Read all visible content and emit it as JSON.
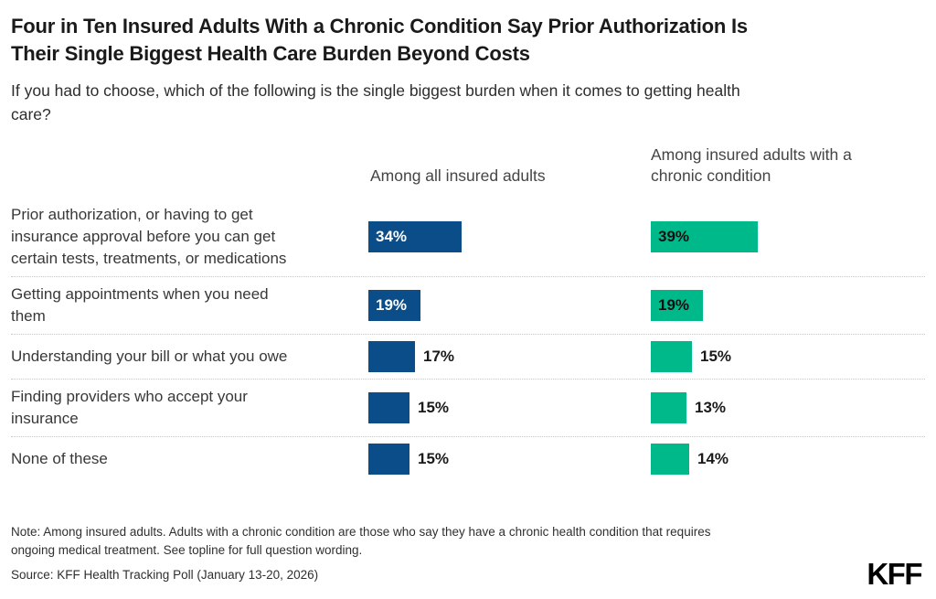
{
  "header": {
    "title": "Four in Ten Insured Adults With a Chronic Condition Say Prior Authorization Is Their Single Biggest Health Care Burden Beyond Costs",
    "subtitle": "If you had to choose, which of the following is the single biggest burden when it comes to getting health care?"
  },
  "chart_data": {
    "type": "bar",
    "orientation": "horizontal",
    "title": "Four in Ten Insured Adults With a Chronic Condition Say Prior Authorization Is Their Single Biggest Health Care Burden Beyond Costs",
    "subtitle": "If you had to choose, which of the following is the single biggest burden when it comes to getting health care?",
    "categories": [
      "Prior authorization, or having to get insurance approval before you can get certain tests, treatments, or medications",
      "Getting appointments when you need them",
      "Understanding your bill or what you owe",
      "Finding providers who accept your insurance",
      "None of these"
    ],
    "series": [
      {
        "name": "Among all insured adults",
        "values": [
          34,
          19,
          17,
          15,
          15
        ],
        "color": "#0B4D88",
        "inside_label_color": "#FFFFFF"
      },
      {
        "name": "Among insured adults with a chronic condition",
        "values": [
          39,
          19,
          15,
          13,
          14
        ],
        "color": "#00B98A",
        "inside_label_color": "#111111"
      }
    ],
    "value_suffix": "%",
    "value_range": [
      0,
      100
    ],
    "grid": false,
    "axes_shown": false,
    "legend_position": "column-headers",
    "separator_style": "dotted"
  },
  "footer": {
    "note": "Note: Among insured adults. Adults with a chronic condition are those who say they have a chronic health condition that requires ongoing medical treatment. See topline for full question wording.",
    "source": "Source: KFF Health Tracking Poll (January 13-20, 2026)",
    "logo": "KFF"
  },
  "colors": {
    "all_insured_bar": "#0B4D88",
    "chronic_condition_bar": "#00B98A",
    "divider": "#C8C8C8",
    "title_text": "#1A1A1A",
    "body_text": "#383838"
  }
}
